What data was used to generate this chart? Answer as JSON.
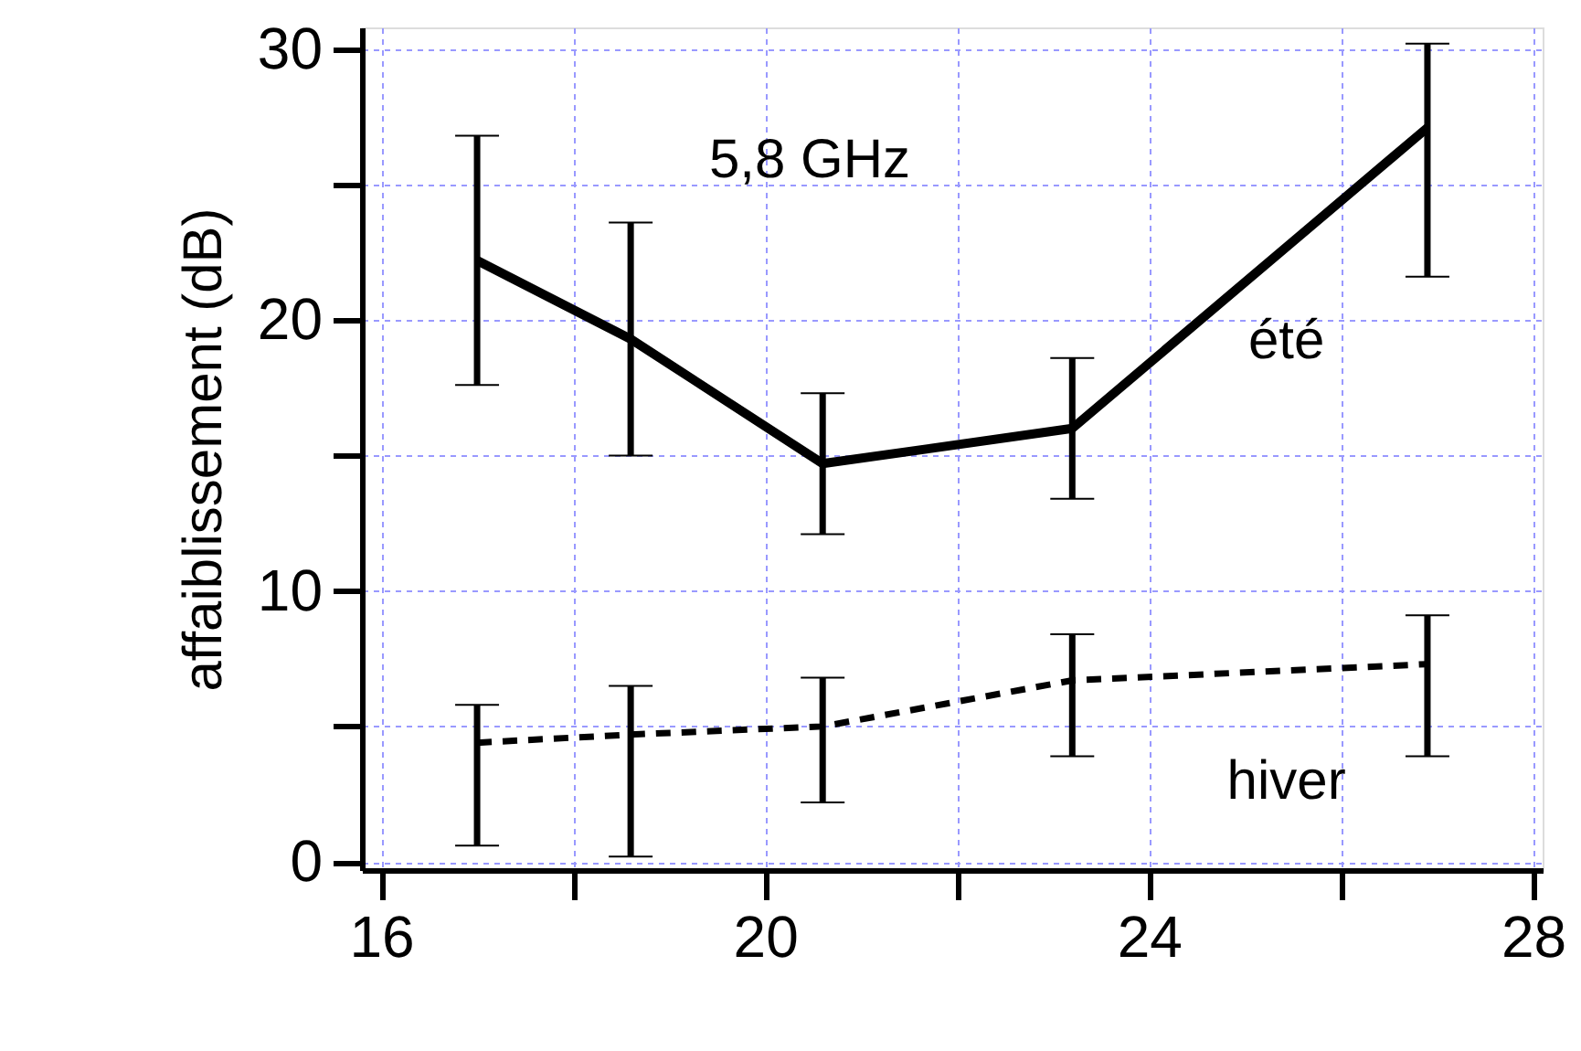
{
  "chart_data": {
    "type": "line",
    "ylabel": "affaiblissement (dB)",
    "annotations": [
      "5,8 GHz"
    ],
    "x": [
      17.0,
      18.6,
      20.6,
      23.2,
      26.9
    ],
    "series": [
      {
        "name": "été",
        "color": "#000000",
        "line_style": "solid",
        "values": [
          22.2,
          19.3,
          14.7,
          16.0,
          27.1
        ],
        "errors": [
          [
            17.6,
            26.8
          ],
          [
            15.0,
            23.6
          ],
          [
            12.1,
            17.3
          ],
          [
            13.4,
            18.6
          ],
          [
            21.6,
            30.2
          ]
        ]
      },
      {
        "name": "hiver",
        "color": "#000000",
        "line_style": "dashed",
        "values": [
          4.4,
          4.7,
          5.0,
          6.7,
          7.3
        ],
        "errors": [
          [
            0.6,
            5.8
          ],
          [
            0.2,
            6.5
          ],
          [
            2.2,
            6.8
          ],
          [
            3.9,
            8.4
          ],
          [
            3.9,
            9.1
          ]
        ]
      }
    ],
    "xlim": [
      15.8,
      28.1
    ],
    "xticks": [
      16,
      {
        "value": 18,
        "label": null
      },
      20,
      {
        "value": 22,
        "label": null
      },
      24,
      {
        "value": 26,
        "label": null
      },
      28
    ],
    "ylim": [
      -0.3,
      30.8
    ],
    "yticks": [
      0,
      {
        "value": 5,
        "label": null
      },
      10,
      {
        "value": 15,
        "label": null
      },
      20,
      {
        "value": 25,
        "label": null
      },
      30
    ],
    "grid": true,
    "marker": "none"
  }
}
